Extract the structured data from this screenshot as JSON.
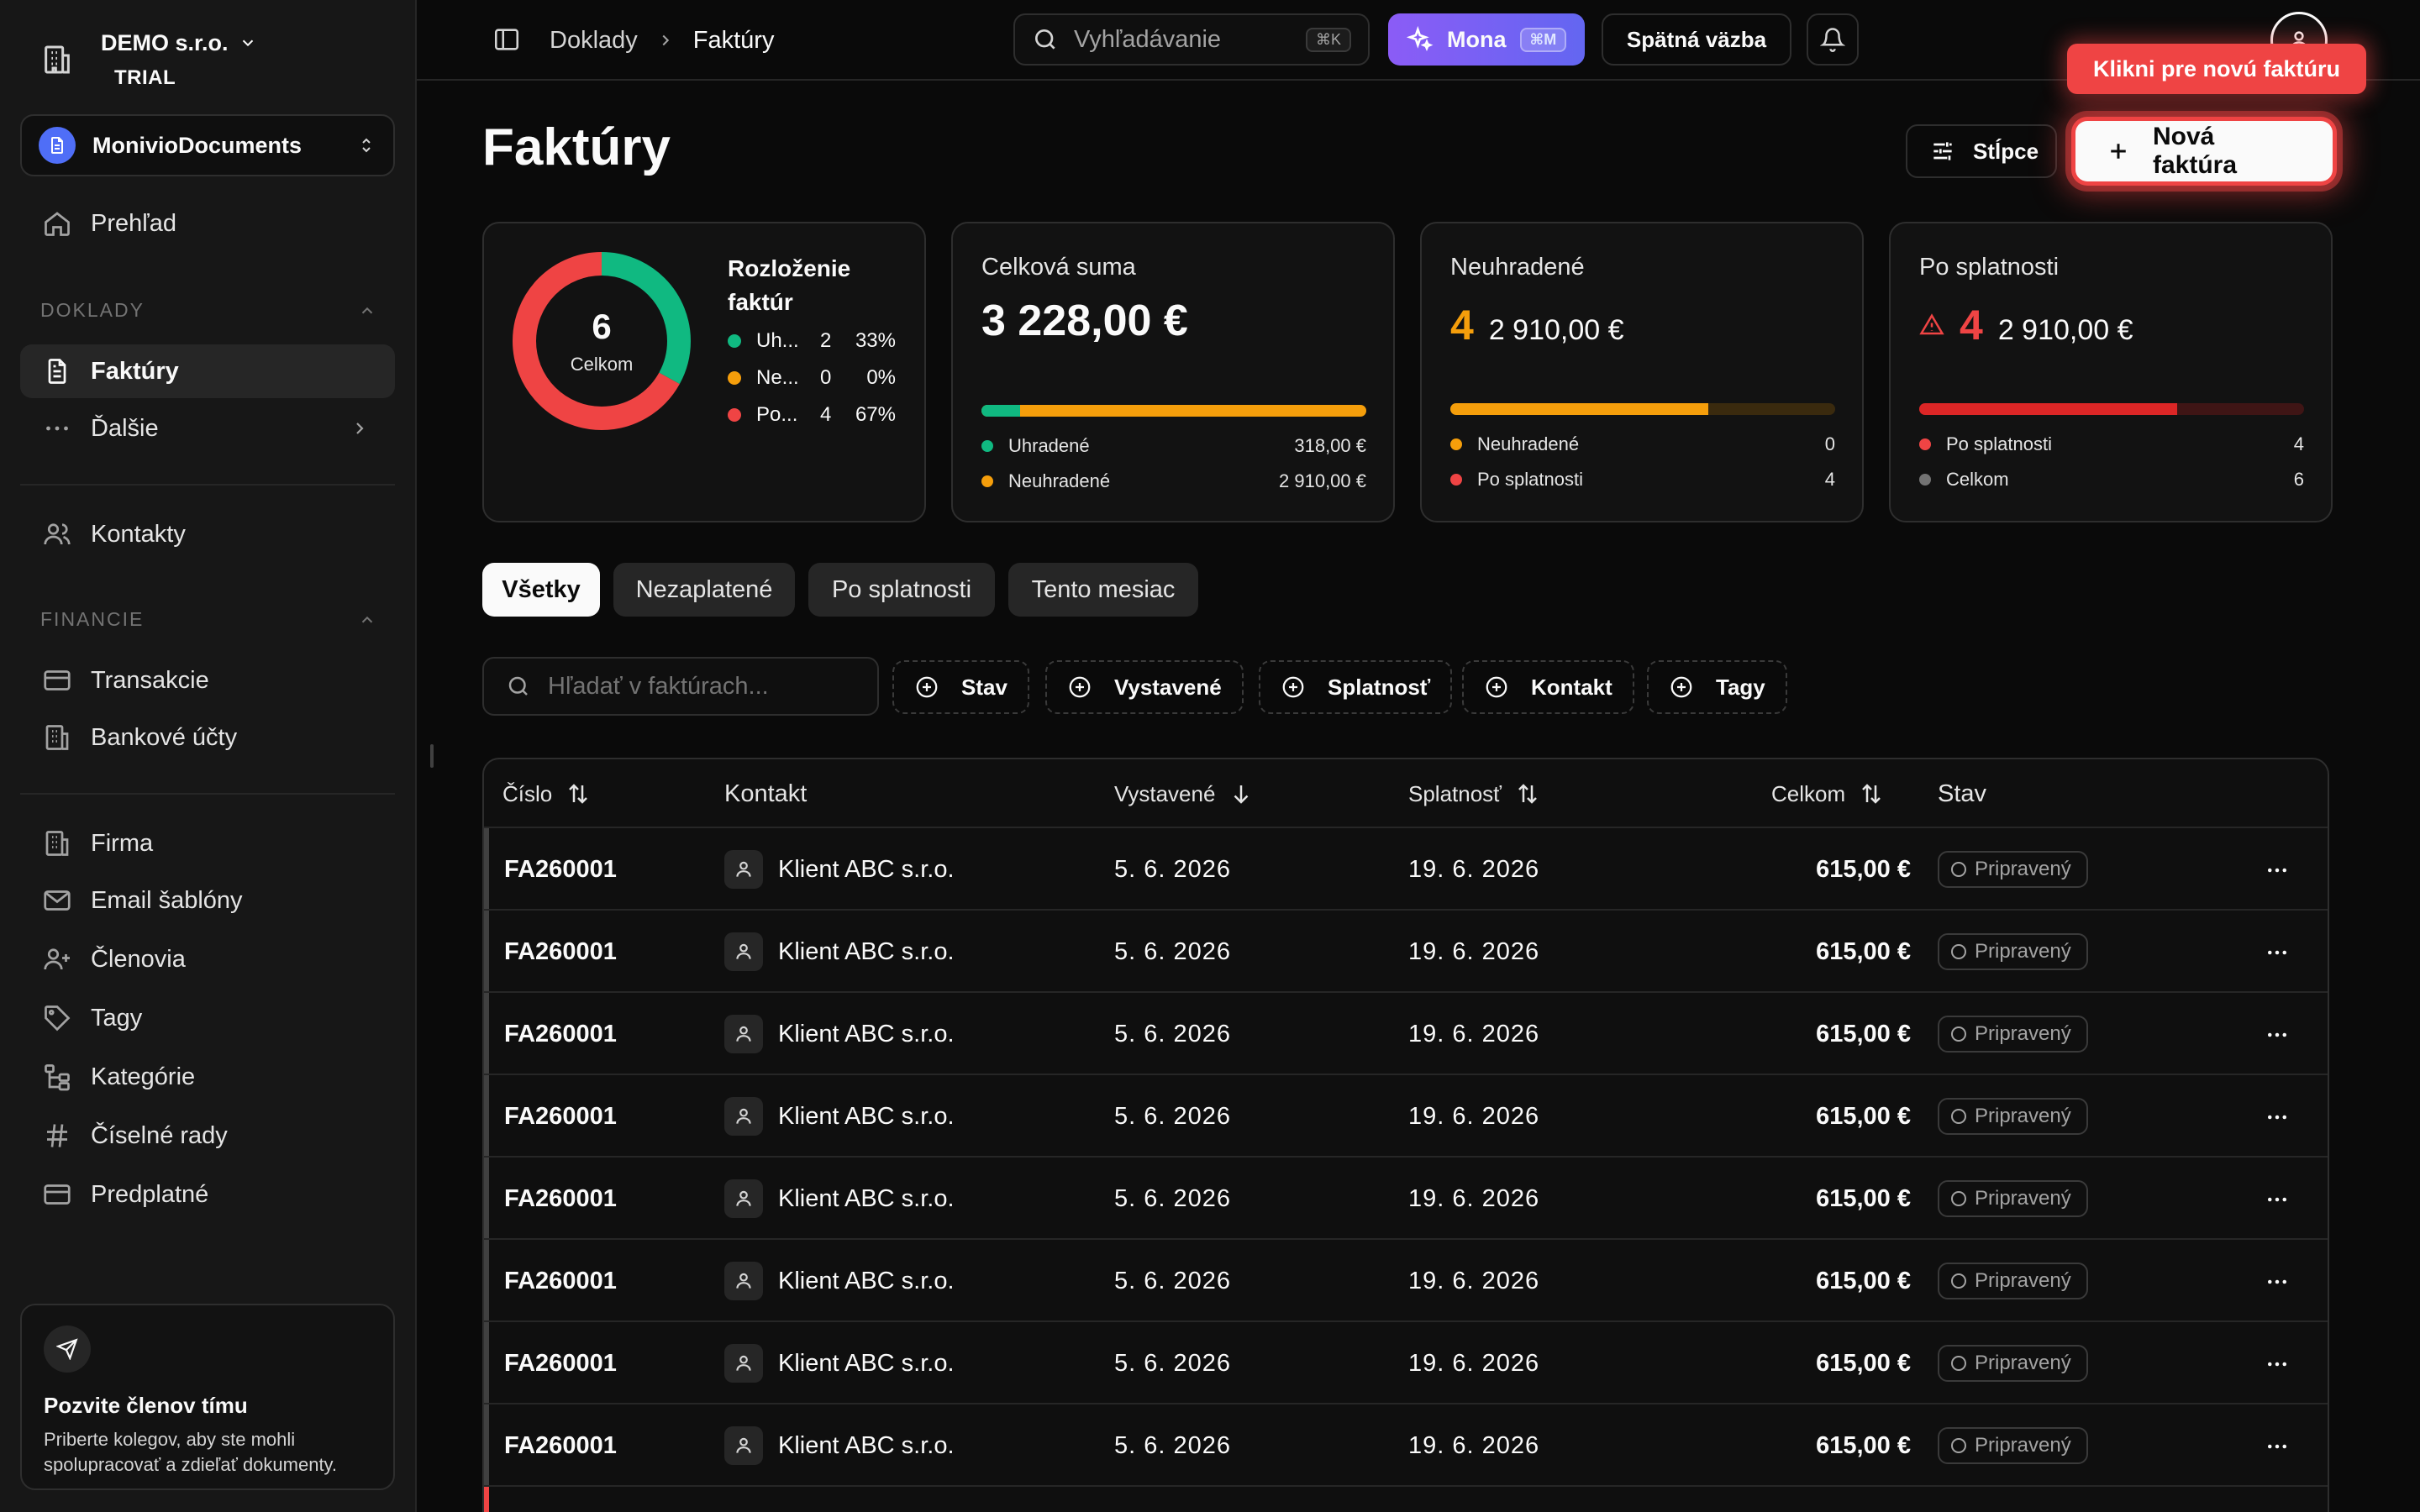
{
  "sidebar": {
    "org_name": "DEMO s.r.o.",
    "org_plan": "TRIAL",
    "workspace": "MonivioDocuments",
    "overview": "Prehľad",
    "sections": {
      "doklady": "DOKLADY",
      "financie": "FINANCIE"
    },
    "items": {
      "faktury": "Faktúry",
      "dalsie": "Ďalšie",
      "kontakty": "Kontakty",
      "transakcie": "Transakcie",
      "bankove_ucty": "Bankové účty",
      "firma": "Firma",
      "email_sablony": "Email šablóny",
      "clenovia": "Členovia",
      "tagy": "Tagy",
      "kategorie": "Kategórie",
      "ciselne_rady": "Číselné rady",
      "predplatne": "Predplatné"
    },
    "invite": {
      "title": "Pozvite členov tímu",
      "text": "Priberte kolegov, aby ste mohli spolupracovať a zdieľať dokumenty."
    }
  },
  "topbar": {
    "breadcrumb": [
      "Doklady",
      "Faktúry"
    ],
    "search_placeholder": "Vyhľadávanie",
    "search_kbd": "⌘K",
    "mona_label": "Mona",
    "mona_kbd": "⌘M",
    "feedback_label": "Spätná väzba"
  },
  "header": {
    "title": "Faktúry",
    "columns_label": "Stĺpce",
    "new_invoice_label": "Nová faktúra",
    "tooltip": "Klikni pre novú faktúru"
  },
  "cards": {
    "distribution": {
      "title": "Rozloženie faktúr",
      "total": "6",
      "total_label": "Celkom",
      "rows": [
        {
          "label": "Uh...",
          "count": "2",
          "percent": "33%",
          "share": 0.33,
          "color": "#10b981"
        },
        {
          "label": "Ne...",
          "count": "0",
          "percent": "0%",
          "share": 0.0,
          "color": "#f59e0b"
        },
        {
          "label": "Po...",
          "count": "4",
          "percent": "67%",
          "share": 0.67,
          "color": "#ef4444"
        }
      ]
    },
    "total_sum": {
      "title": "Celková suma",
      "value": "3 228,00 €",
      "paid_share": 0.1,
      "legend": [
        {
          "label": "Uhradené",
          "value": "318,00 €",
          "color": "#10b981"
        },
        {
          "label": "Neuhradené",
          "value": "2 910,00 €",
          "color": "#f59e0b"
        }
      ]
    },
    "unpaid": {
      "title": "Neuhradené",
      "count": "4",
      "value": "2 910,00 €",
      "fill_share": 0.67,
      "legend": [
        {
          "label": "Neuhradené",
          "value": "0",
          "color": "#f59e0b"
        },
        {
          "label": "Po splatnosti",
          "value": "4",
          "color": "#ef4444"
        }
      ]
    },
    "overdue": {
      "title": "Po splatnosti",
      "count": "4",
      "value": "2 910,00 €",
      "fill_share": 0.67,
      "legend": [
        {
          "label": "Po splatnosti",
          "value": "4",
          "color": "#ef4444"
        },
        {
          "label": "Celkom",
          "value": "6",
          "color": "#737373"
        }
      ]
    }
  },
  "tabs": [
    "Všetky",
    "Nezaplatené",
    "Po splatnosti",
    "Tento mesiac"
  ],
  "filters": {
    "search_placeholder": "Hľadať v faktúrach...",
    "chips": [
      "Stav",
      "Vystavené",
      "Splatnosť",
      "Kontakt",
      "Tagy"
    ]
  },
  "table": {
    "headers": {
      "number": "Číslo",
      "contact": "Kontakt",
      "issued": "Vystavené",
      "due": "Splatnosť",
      "total": "Celkom",
      "status": "Stav"
    },
    "rows": [
      {
        "number": "FA260001",
        "contact": "Klient ABC s.r.o.",
        "issued": "5. 6. 2026",
        "due": "19. 6. 2026",
        "total": "615,00 €",
        "status": "Pripravený"
      },
      {
        "number": "FA260001",
        "contact": "Klient ABC s.r.o.",
        "issued": "5. 6. 2026",
        "due": "19. 6. 2026",
        "total": "615,00 €",
        "status": "Pripravený"
      },
      {
        "number": "FA260001",
        "contact": "Klient ABC s.r.o.",
        "issued": "5. 6. 2026",
        "due": "19. 6. 2026",
        "total": "615,00 €",
        "status": "Pripravený"
      },
      {
        "number": "FA260001",
        "contact": "Klient ABC s.r.o.",
        "issued": "5. 6. 2026",
        "due": "19. 6. 2026",
        "total": "615,00 €",
        "status": "Pripravený"
      },
      {
        "number": "FA260001",
        "contact": "Klient ABC s.r.o.",
        "issued": "5. 6. 2026",
        "due": "19. 6. 2026",
        "total": "615,00 €",
        "status": "Pripravený"
      },
      {
        "number": "FA260001",
        "contact": "Klient ABC s.r.o.",
        "issued": "5. 6. 2026",
        "due": "19. 6. 2026",
        "total": "615,00 €",
        "status": "Pripravený"
      },
      {
        "number": "FA260001",
        "contact": "Klient ABC s.r.o.",
        "issued": "5. 6. 2026",
        "due": "19. 6. 2026",
        "total": "615,00 €",
        "status": "Pripravený"
      },
      {
        "number": "FA260001",
        "contact": "Klient ABC s.r.o.",
        "issued": "5. 6. 2026",
        "due": "19. 6. 2026",
        "total": "615,00 €",
        "status": "Pripravený"
      }
    ]
  },
  "colors": {
    "paid": "#10b981",
    "unpaid": "#f59e0b",
    "overdue": "#ef4444",
    "accent": "#8b5cf6"
  }
}
